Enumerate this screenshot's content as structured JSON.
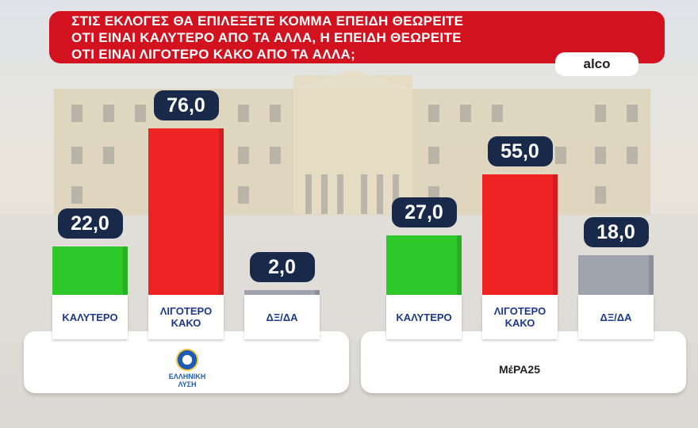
{
  "chart_data": {
    "type": "bar",
    "title_lines": [
      "ΣΤΙΣ ΕΚΛΟΓΕΣ ΘΑ ΕΠΙΛΕΞΕΤΕ ΚΟΜΜΑ ΕΠΕΙΔΗ ΘΕΩΡΕΙΤΕ",
      "ΟΤΙ ΕΙΝΑΙ ΚΑΛΥΤΕΡΟ ΑΠΟ ΤΑ ΑΛΛΑ, Η ΕΠΕΙΔΗ ΘΕΩΡΕΙΤΕ",
      "ΟΤΙ ΕΙΝΑΙ ΛΙΓΟΤΕΡΟ ΚΑΚΟ ΑΠΟ ΤΑ ΑΛΛΑ;"
    ],
    "source": "alco",
    "groups": [
      {
        "name": "ΕΛΛΗΝΙΚΗ ΛΥΣΗ",
        "categories": [
          "ΚΑΛΥΤΕΡΟ",
          "ΛΙΓΟΤΕΡΟ ΚΑΚΟ",
          "ΔΞ/ΔΑ"
        ],
        "values": [
          22,
          76,
          2
        ],
        "value_labels": [
          "22,0",
          "76,0",
          "2,0"
        ],
        "colors": [
          "#2ec82a",
          "#ee2424",
          "#9ea3ad"
        ]
      },
      {
        "name": "ΜέΡΑ25",
        "categories": [
          "ΚΑΛΥΤΕΡΟ",
          "ΛΙΓΟΤΕΡΟ ΚΑΚΟ",
          "ΔΞ/ΔΑ"
        ],
        "values": [
          27,
          55,
          18
        ],
        "value_labels": [
          "27,0",
          "55,0",
          "18,0"
        ],
        "colors": [
          "#2ec82a",
          "#ee2424",
          "#9ea3ad"
        ]
      }
    ]
  }
}
